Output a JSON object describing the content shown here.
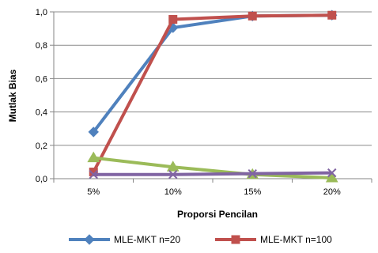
{
  "chart_data": {
    "type": "line",
    "title": "",
    "xlabel": "Proporsi Pencilan",
    "ylabel": "Mutlak Bias",
    "categories": [
      "5%",
      "10%",
      "15%",
      "20%"
    ],
    "y_tick_labels": [
      "0,0",
      "0,2",
      "0,4",
      "0,6",
      "0,8",
      "1,0"
    ],
    "ylim": [
      0,
      1.0
    ],
    "grid": "horizontal",
    "legend_position": "bottom",
    "series": [
      {
        "name": "MLE-MKT n=20",
        "values": [
          0.28,
          0.905,
          0.975,
          0.98
        ],
        "color": "#4F81BD",
        "marker": "diamond"
      },
      {
        "name": "MLE-MKT n=100",
        "values": [
          0.04,
          0.955,
          0.975,
          0.98
        ],
        "color": "#C0504D",
        "marker": "square"
      },
      {
        "name": "",
        "values": [
          0.125,
          0.07,
          0.025,
          0.005
        ],
        "color": "#9BBB59",
        "marker": "triangle"
      },
      {
        "name": "",
        "values": [
          0.025,
          0.025,
          0.03,
          0.035
        ],
        "color": "#8064A2",
        "marker": "x"
      }
    ]
  }
}
